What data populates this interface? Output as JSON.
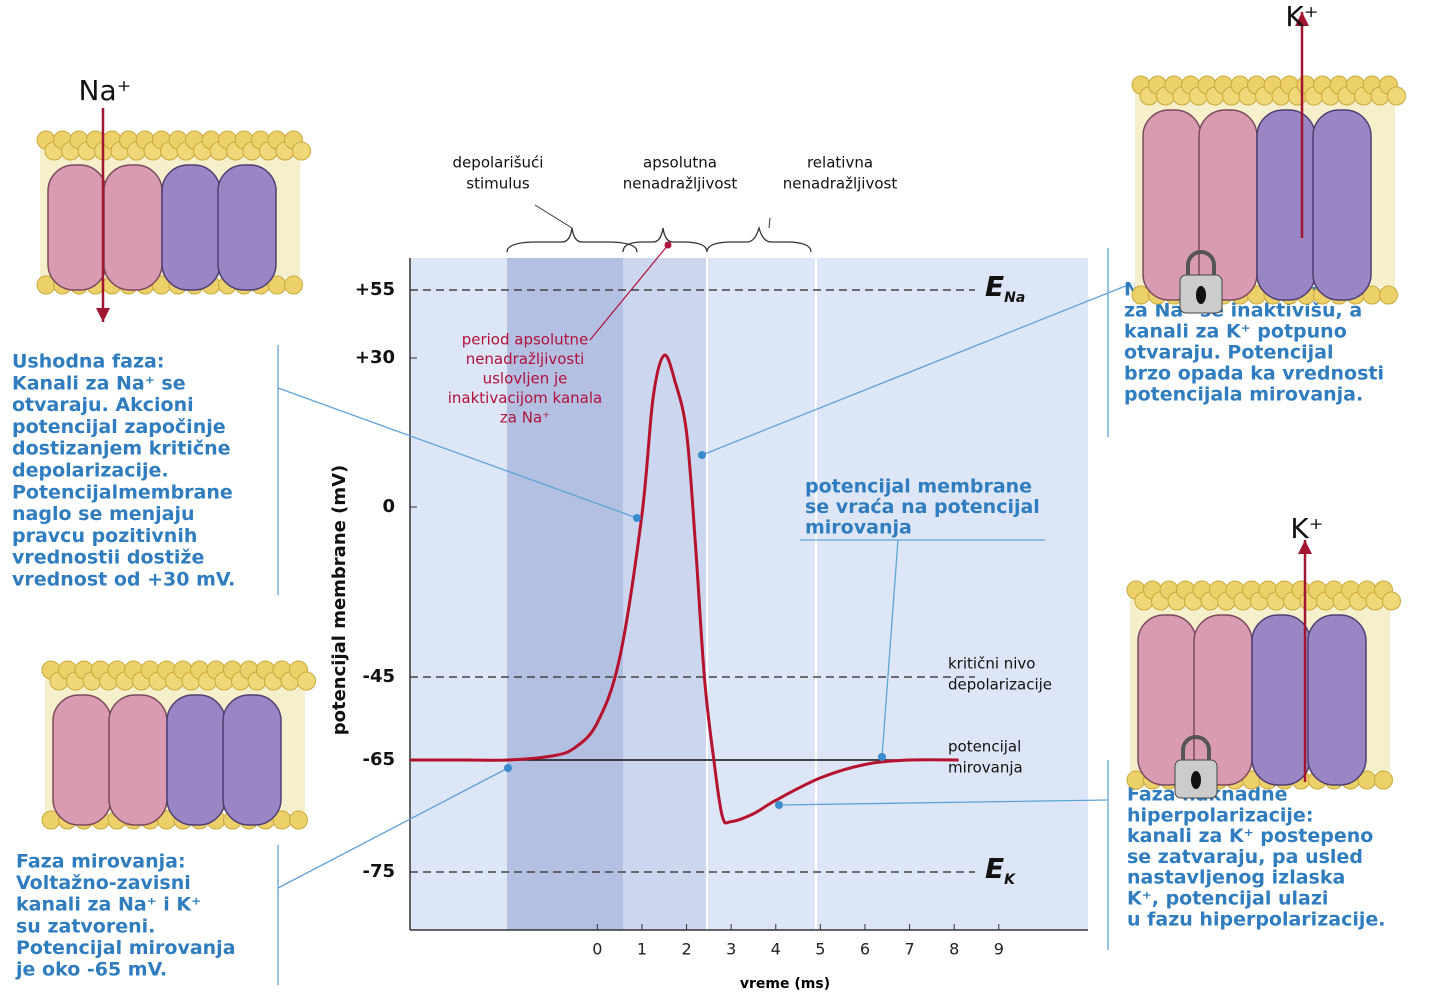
{
  "chart_data": {
    "type": "line",
    "x_label": "vreme (ms)",
    "y_label": "potencijal membrane (mV)",
    "xlim": [
      -4.2,
      11
    ],
    "xticks": [
      0,
      1,
      2,
      3,
      4,
      5,
      6,
      7,
      8,
      9
    ],
    "ylim": [
      -80,
      67
    ],
    "yticks": [
      {
        "value": 55,
        "label": "+55"
      },
      {
        "value": 30,
        "label": "+30"
      },
      0,
      -45,
      -65,
      -75
    ],
    "series": [
      {
        "color": "#b5122e",
        "x": [
          -4.2,
          -3,
          -2,
          -1,
          -0.5,
          0,
          0.5,
          1,
          1.25,
          1.5,
          1.75,
          2,
          2.2,
          2.4,
          2.6,
          2.8,
          3,
          3.5,
          4,
          5,
          6,
          7,
          8.1
        ],
        "values": [
          -65,
          -65,
          -65,
          -64,
          -62,
          -56,
          -40,
          -2,
          22,
          31,
          25,
          15,
          -10,
          -45,
          -64,
          -70,
          -70.5,
          -69.8,
          -68.6,
          -66.6,
          -65.4,
          -65,
          -65
        ]
      }
    ],
    "reference_lines": [
      {
        "value": 55,
        "style": "dashed",
        "label": {
          "symbol": "E",
          "subscript": "Na"
        }
      },
      {
        "value": -45,
        "style": "dashed",
        "label": [
          "kritični nivo",
          "depolarizacije"
        ]
      },
      {
        "value": -65,
        "style": "solid",
        "label": [
          "potencijal",
          "mirovanja"
        ]
      },
      {
        "value": -75,
        "style": "dashed",
        "label": {
          "symbol": "E",
          "subscript": "K"
        }
      }
    ],
    "phases": [
      [
        "depolarišući",
        "stimulus"
      ],
      [
        "apsolutna",
        "nenadražljivost"
      ],
      [
        "relativna",
        "nenadražljivost"
      ]
    ],
    "refractory_note": [
      "period apsolutne",
      "nenadražljivosti",
      "uslovljen je",
      "inaktivacijom kanala",
      "za Na⁺"
    ],
    "return_note": [
      "potencijal membrane",
      "se vraća na potencijal",
      "mirovanja"
    ]
  },
  "ions": {
    "top_left": "Na⁺",
    "top_right": "K⁺",
    "bottom_right": "K⁺"
  },
  "callouts": {
    "rising": [
      "Ushodna faza:",
      "Kanali za Na⁺ se",
      "otvaraju. Akcioni",
      "potencijal započinje",
      "dostizanjem kritične",
      "depolarizacije.",
      "Potencijalmembrane",
      "naglo se menjaju",
      "pravcu pozitivnih",
      "vrednostii dostiže",
      "vrednost od +30 mV."
    ],
    "resting": [
      "Faza mirovanja:",
      "Voltažno-zavisni",
      "kanali za Na⁺ i K⁺",
      "su zatvoreni.",
      "Potencijal mirovanja",
      "je oko -65 mV."
    ],
    "falling": [
      "Nishodna faza: Kanali",
      "za Na⁺ se inaktivišu, a",
      "kanali za K⁺ potpuno",
      "otvaraju. Potencijal",
      "brzo opada ka vrednosti",
      "potencijala mirovanja."
    ],
    "hyper": [
      "Faza naknadne",
      "hiperpolarizacije:",
      "kanali za K⁺ postepeno",
      "se zatvaraju, pa usled",
      "nastavljenog izlaska",
      "K⁺, potencijal ulazi",
      "u fazu hiperpolarizacije."
    ]
  }
}
